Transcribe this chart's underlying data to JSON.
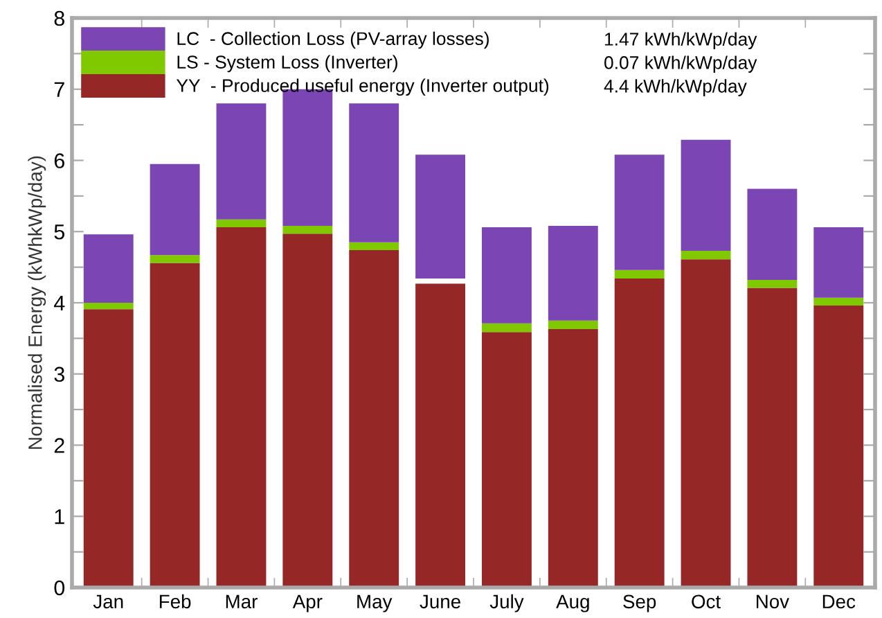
{
  "chart_data": {
    "type": "bar",
    "stacked": true,
    "ylabel": "Normalised Energy (kWhkWp/day)",
    "categories": [
      "Jan",
      "Feb",
      "Mar",
      "Apr",
      "May",
      "June",
      "July",
      "Aug",
      "Sep",
      "Oct",
      "Nov",
      "Dec"
    ],
    "series": [
      {
        "name": "YY  - Produced useful energy (Inverter output)",
        "color": "#952826",
        "values": [
          3.91,
          4.56,
          5.06,
          4.97,
          4.74,
          4.27,
          3.59,
          3.63,
          4.34,
          4.61,
          4.21,
          3.96
        ]
      },
      {
        "name": "LS - System Loss (Inverter)",
        "color": "#80c800",
        "colors": [
          "#80c800",
          "#80c800",
          "#80c800",
          "#80c800",
          "#80c800",
          "#ffffff",
          "#80c800",
          "#80c800",
          "#80c800",
          "#80c800",
          "#80c800",
          "#80c800"
        ],
        "values": [
          0.09,
          0.11,
          0.11,
          0.11,
          0.11,
          0.07,
          0.12,
          0.12,
          0.12,
          0.12,
          0.11,
          0.11
        ]
      },
      {
        "name": "LC  - Collection Loss (PV-array losses)",
        "color": "#7b46b4",
        "values": [
          0.96,
          1.28,
          1.63,
          1.92,
          1.95,
          1.74,
          1.35,
          1.33,
          1.62,
          1.56,
          1.28,
          0.99
        ]
      }
    ],
    "annotations": [
      "4.4 kWh/kWp/day",
      "0.07 kWh/kWp/day",
      "1.47 kWh/kWp/day"
    ],
    "ylim": [
      0,
      8
    ],
    "yticks": [
      0,
      {
        "value": 0.5,
        "label": null
      },
      1,
      {
        "value": 1.5,
        "label": null
      },
      2,
      {
        "value": 2.5,
        "label": null
      },
      3,
      {
        "value": 3.5,
        "label": null
      },
      4,
      {
        "value": 4.5,
        "label": null
      },
      5,
      {
        "value": 5.5,
        "label": null
      },
      6,
      {
        "value": 6.5,
        "label": null
      },
      7,
      {
        "value": 7.5,
        "label": null
      },
      8
    ],
    "grid": false,
    "legend": "top left"
  }
}
